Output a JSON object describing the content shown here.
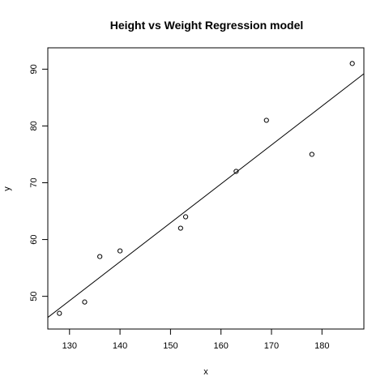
{
  "chart_data": {
    "type": "scatter",
    "title": "Height vs Weight Regression model",
    "xlabel": "x",
    "ylabel": "y",
    "xlim": [
      125.7,
      188.3
    ],
    "ylim": [
      44.24,
      93.76
    ],
    "xticks": [
      130,
      140,
      150,
      160,
      170,
      180
    ],
    "yticks": [
      50,
      60,
      70,
      80,
      90
    ],
    "grid": false,
    "legend": "none",
    "x": [
      128,
      133,
      136,
      140,
      152,
      153,
      163,
      169,
      178,
      186
    ],
    "y": [
      47,
      49,
      57,
      58,
      62,
      64,
      72,
      81,
      75,
      91
    ],
    "regression_line": {
      "points": [
        [
          125.7,
          46.28
        ],
        [
          188.3,
          89.19
        ]
      ]
    }
  }
}
